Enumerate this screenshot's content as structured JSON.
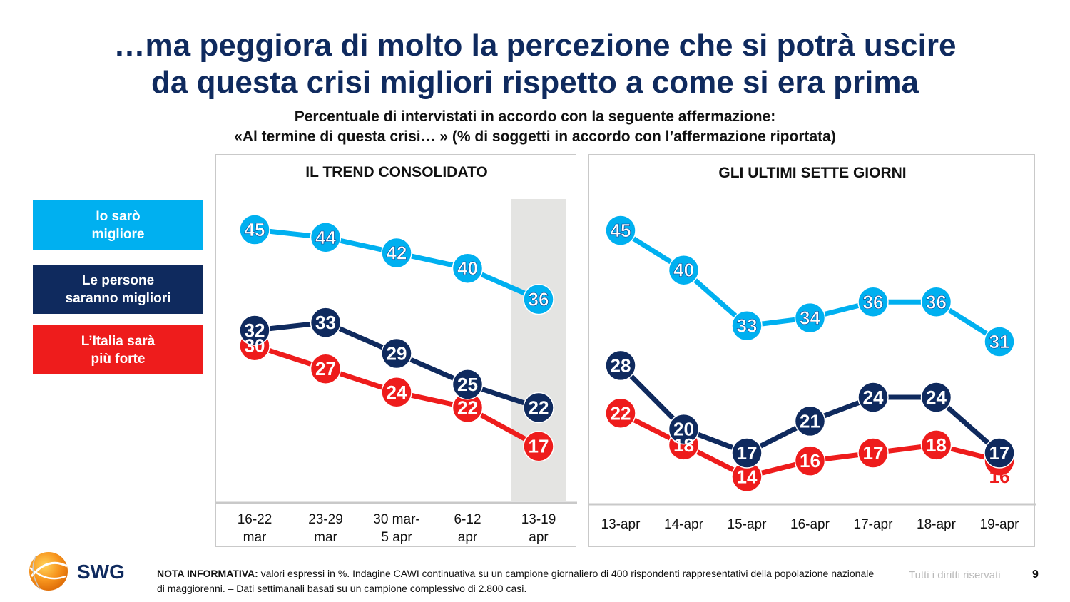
{
  "title_line1": "…ma peggiora di molto la percezione che si potrà uscire",
  "title_line2": "da questa crisi migliori rispetto a come si era prima",
  "subtitle_line1": "Percentuale di intervistati in accordo con la seguente affermazione:",
  "subtitle_line2": "«Al termine di questa crisi… » (% di soggetti in accordo con l’affermazione riportata)",
  "legend": [
    {
      "line1": "Io sarò",
      "line2": "migliore",
      "color": "#00b0f0"
    },
    {
      "line1": "Le persone",
      "line2": "saranno migliori",
      "color": "#0f2a5e"
    },
    {
      "line1": "L’Italia sarà",
      "line2": "più forte",
      "color": "#ee1c1c"
    }
  ],
  "colors": {
    "light_blue": "#00b0f0",
    "navy": "#0f2a5e",
    "red": "#ee1c1c",
    "highlight": "#e4e4e2"
  },
  "chart_data": [
    {
      "type": "line",
      "title": "IL TREND CONSOLIDATO",
      "categories": [
        [
          "16-22",
          "mar"
        ],
        [
          "23-29",
          "mar"
        ],
        [
          "30 mar-",
          "5 apr"
        ],
        [
          "6-12",
          "apr"
        ],
        [
          "13-19",
          "apr"
        ]
      ],
      "ylim": [
        10,
        50
      ],
      "highlight_last": true,
      "series": [
        {
          "name": "Io sarò migliore",
          "values": [
            45,
            44,
            42,
            40,
            36
          ],
          "color": "#00b0f0"
        },
        {
          "name": "Le persone saranno migliori",
          "values": [
            32,
            33,
            29,
            25,
            22
          ],
          "color": "#0f2a5e"
        },
        {
          "name": "L’Italia sarà più forte",
          "values": [
            30,
            27,
            24,
            22,
            17
          ],
          "color": "#ee1c1c"
        }
      ]
    },
    {
      "type": "line",
      "title": "GLI ULTIMI SETTE GIORNI",
      "categories": [
        [
          "13-apr"
        ],
        [
          "14-apr"
        ],
        [
          "15-apr"
        ],
        [
          "16-apr"
        ],
        [
          "17-apr"
        ],
        [
          "18-apr"
        ],
        [
          "19-apr"
        ]
      ],
      "ylim": [
        10,
        50
      ],
      "highlight_last": false,
      "series": [
        {
          "name": "Io sarò migliore",
          "values": [
            45,
            40,
            33,
            34,
            36,
            36,
            31
          ],
          "color": "#00b0f0"
        },
        {
          "name": "Le persone saranno migliori",
          "values": [
            28,
            20,
            17,
            21,
            24,
            24,
            17
          ],
          "color": "#0f2a5e"
        },
        {
          "name": "L’Italia sarà più forte",
          "values": [
            22,
            18,
            14,
            16,
            17,
            18,
            16
          ],
          "color": "#ee1c1c"
        }
      ]
    }
  ],
  "footer": {
    "note_label": "NOTA INFORMATIVA:",
    "note_text": " valori espressi in %. Indagine CAWI continuativa su un campione giornaliero di 400 rispondenti rappresentativi della popolazione nazionale di maggiorenni. – Dati settimanali basati su un campione complessivo di 2.800 casi.",
    "rights": "Tutti i diritti riservati",
    "page": "9",
    "logo_text": "SWG"
  }
}
